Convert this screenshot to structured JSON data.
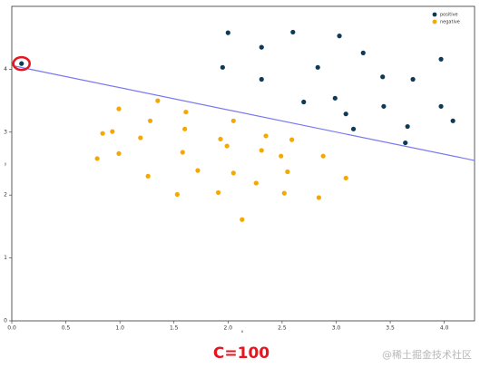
{
  "chart_data": {
    "type": "scatter",
    "xlabel": "x",
    "ylabel": "y",
    "xlim": [
      0,
      4.28
    ],
    "ylim": [
      0,
      5
    ],
    "xticks": [
      {
        "value": 0,
        "label": "0.0"
      },
      0.5,
      {
        "value": 1,
        "label": "1.0"
      },
      1.5,
      {
        "value": 2,
        "label": "2.0"
      },
      2.5,
      {
        "value": 3,
        "label": "3.0"
      },
      3.5,
      {
        "value": 4,
        "label": "4.0"
      }
    ],
    "yticks": [
      0,
      1,
      2,
      3,
      4
    ],
    "legend": "upper right",
    "series": [
      {
        "name": "positive",
        "color": "#0f3a57",
        "mode": "markers",
        "x": [
          2.0,
          2.6,
          2.31,
          3.03,
          1.95,
          2.83,
          3.25,
          3.97,
          2.31,
          3.43,
          3.71,
          2.7,
          2.99,
          3.44,
          3.97,
          3.09,
          3.16,
          3.66,
          4.08,
          3.64,
          0.09
        ],
        "values": [
          4.58,
          4.59,
          4.35,
          4.53,
          4.03,
          4.03,
          4.26,
          4.16,
          3.84,
          3.88,
          3.84,
          3.48,
          3.54,
          3.41,
          3.41,
          3.29,
          3.05,
          3.09,
          3.18,
          2.83,
          4.09
        ]
      },
      {
        "name": "negative",
        "color": "#f5a800",
        "mode": "markers",
        "x": [
          1.35,
          0.99,
          1.61,
          1.28,
          2.05,
          0.84,
          0.93,
          1.19,
          1.6,
          1.93,
          2.35,
          2.59,
          1.99,
          0.99,
          0.79,
          1.58,
          2.31,
          2.88,
          2.49,
          1.72,
          2.05,
          2.55,
          1.26,
          3.09,
          2.26,
          1.91,
          1.53,
          2.52,
          2.84,
          2.13
        ],
        "values": [
          3.5,
          3.37,
          3.32,
          3.18,
          3.18,
          2.98,
          3.01,
          2.91,
          3.05,
          2.89,
          2.94,
          2.88,
          2.78,
          2.66,
          2.58,
          2.68,
          2.71,
          2.62,
          2.62,
          2.39,
          2.35,
          2.37,
          2.3,
          2.27,
          2.19,
          2.04,
          2.01,
          2.03,
          1.96,
          1.61
        ]
      }
    ],
    "boundary": {
      "color": "#7878f0",
      "x": [
        0,
        4.28
      ],
      "values": [
        4.06,
        2.55
      ]
    },
    "highlight": {
      "series": 0,
      "index": 20,
      "color": "#e8141e"
    },
    "caption": "C=100",
    "caption_color": "#e8141e",
    "watermark": "@稀土掘金技术社区"
  }
}
